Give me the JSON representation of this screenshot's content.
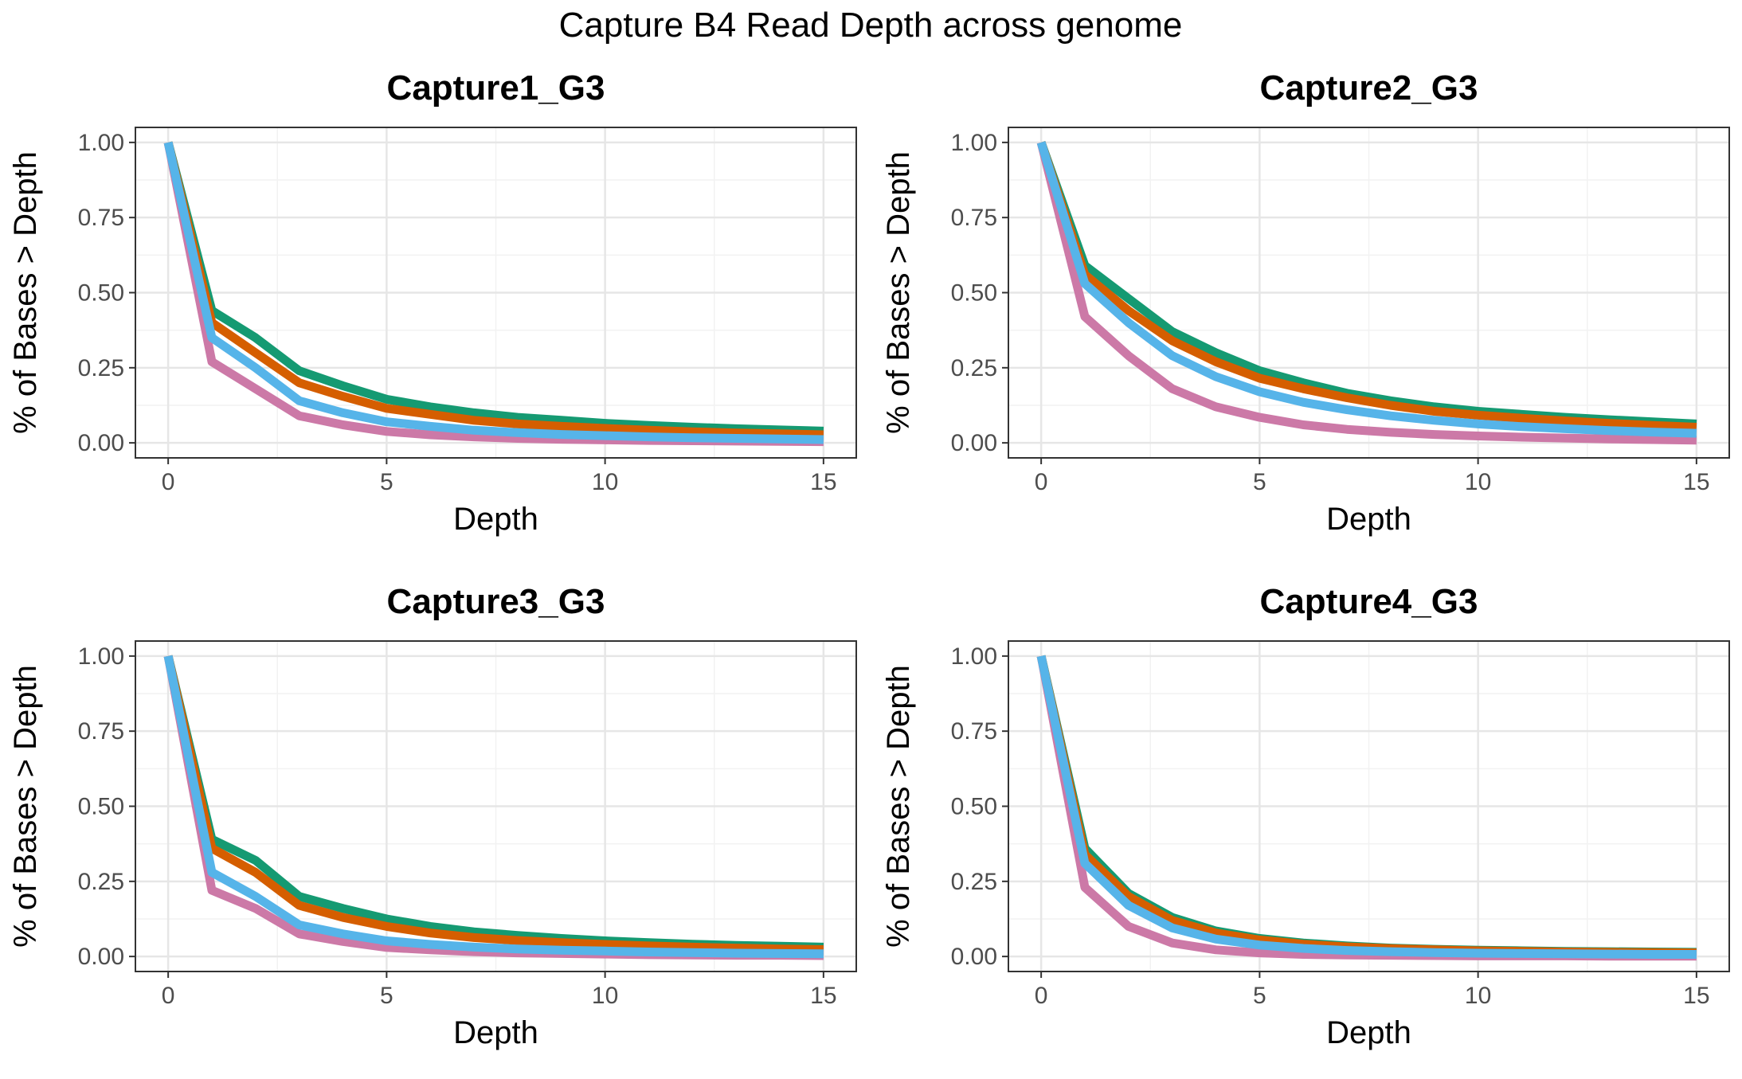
{
  "figure": {
    "title": "Capture B4 Read Depth across genome"
  },
  "chart_data": [
    {
      "type": "line",
      "title": "Capture1_G3",
      "xlabel": "Depth",
      "ylabel": "% of Bases > Depth",
      "xlim": [
        -0.75,
        15.75
      ],
      "ylim": [
        -0.05,
        1.05
      ],
      "xticks": [
        0,
        5,
        10,
        15
      ],
      "yticks": [
        0.0,
        0.25,
        0.5,
        0.75,
        1.0
      ],
      "ytick_labels": [
        "0.00",
        "0.25",
        "0.50",
        "0.75",
        "1.00"
      ],
      "grid": true,
      "x": [
        0,
        1,
        2,
        3,
        4,
        5,
        6,
        7,
        8,
        9,
        10,
        11,
        12,
        13,
        14,
        15
      ],
      "series": [
        {
          "color": "#159a72",
          "values": [
            1.0,
            0.44,
            0.35,
            0.24,
            0.19,
            0.145,
            0.12,
            0.1,
            0.085,
            0.075,
            0.065,
            0.058,
            0.052,
            0.047,
            0.043,
            0.039
          ]
        },
        {
          "color": "#d55e00",
          "values": [
            1.0,
            0.4,
            0.3,
            0.2,
            0.155,
            0.115,
            0.095,
            0.075,
            0.063,
            0.055,
            0.048,
            0.042,
            0.037,
            0.033,
            0.03,
            0.027
          ]
        },
        {
          "color": "#cc79a7",
          "values": [
            1.0,
            0.27,
            0.18,
            0.09,
            0.06,
            0.038,
            0.027,
            0.02,
            0.015,
            0.012,
            0.01,
            0.008,
            0.007,
            0.006,
            0.005,
            0.004
          ]
        },
        {
          "color": "#56b4e9",
          "values": [
            1.0,
            0.35,
            0.25,
            0.14,
            0.1,
            0.07,
            0.055,
            0.042,
            0.034,
            0.028,
            0.024,
            0.02,
            0.017,
            0.015,
            0.013,
            0.011
          ]
        }
      ]
    },
    {
      "type": "line",
      "title": "Capture2_G3",
      "xlabel": "Depth",
      "ylabel": "% of Bases > Depth",
      "xlim": [
        -0.75,
        15.75
      ],
      "ylim": [
        -0.05,
        1.05
      ],
      "xticks": [
        0,
        5,
        10,
        15
      ],
      "yticks": [
        0.0,
        0.25,
        0.5,
        0.75,
        1.0
      ],
      "ytick_labels": [
        "0.00",
        "0.25",
        "0.50",
        "0.75",
        "1.00"
      ],
      "grid": true,
      "x": [
        0,
        1,
        2,
        3,
        4,
        5,
        6,
        7,
        8,
        9,
        10,
        11,
        12,
        13,
        14,
        15
      ],
      "series": [
        {
          "color": "#159a72",
          "values": [
            1.0,
            0.59,
            0.48,
            0.37,
            0.3,
            0.24,
            0.2,
            0.165,
            0.14,
            0.12,
            0.105,
            0.095,
            0.085,
            0.077,
            0.07,
            0.063
          ]
        },
        {
          "color": "#d55e00",
          "values": [
            1.0,
            0.56,
            0.44,
            0.34,
            0.27,
            0.215,
            0.18,
            0.15,
            0.125,
            0.105,
            0.092,
            0.082,
            0.073,
            0.065,
            0.058,
            0.052
          ]
        },
        {
          "color": "#cc79a7",
          "values": [
            1.0,
            0.42,
            0.29,
            0.18,
            0.12,
            0.085,
            0.06,
            0.045,
            0.035,
            0.028,
            0.023,
            0.019,
            0.016,
            0.013,
            0.011,
            0.009
          ]
        },
        {
          "color": "#56b4e9",
          "values": [
            1.0,
            0.53,
            0.4,
            0.29,
            0.22,
            0.17,
            0.135,
            0.11,
            0.09,
            0.075,
            0.063,
            0.054,
            0.047,
            0.041,
            0.036,
            0.032
          ]
        }
      ]
    },
    {
      "type": "line",
      "title": "Capture3_G3",
      "xlabel": "Depth",
      "ylabel": "% of Bases > Depth",
      "xlim": [
        -0.75,
        15.75
      ],
      "ylim": [
        -0.05,
        1.05
      ],
      "xticks": [
        0,
        5,
        10,
        15
      ],
      "yticks": [
        0.0,
        0.25,
        0.5,
        0.75,
        1.0
      ],
      "ytick_labels": [
        "0.00",
        "0.25",
        "0.50",
        "0.75",
        "1.00"
      ],
      "grid": true,
      "x": [
        0,
        1,
        2,
        3,
        4,
        5,
        6,
        7,
        8,
        9,
        10,
        11,
        12,
        13,
        14,
        15
      ],
      "series": [
        {
          "color": "#159a72",
          "values": [
            1.0,
            0.39,
            0.32,
            0.2,
            0.16,
            0.125,
            0.1,
            0.082,
            0.07,
            0.06,
            0.052,
            0.046,
            0.041,
            0.037,
            0.034,
            0.031
          ]
        },
        {
          "color": "#d55e00",
          "values": [
            1.0,
            0.36,
            0.28,
            0.17,
            0.13,
            0.1,
            0.078,
            0.063,
            0.053,
            0.046,
            0.04,
            0.035,
            0.031,
            0.028,
            0.025,
            0.023
          ]
        },
        {
          "color": "#cc79a7",
          "values": [
            1.0,
            0.22,
            0.16,
            0.075,
            0.05,
            0.03,
            0.022,
            0.016,
            0.012,
            0.01,
            0.008,
            0.006,
            0.005,
            0.004,
            0.004,
            0.003
          ]
        },
        {
          "color": "#56b4e9",
          "values": [
            1.0,
            0.28,
            0.2,
            0.105,
            0.075,
            0.052,
            0.04,
            0.031,
            0.025,
            0.021,
            0.018,
            0.015,
            0.013,
            0.011,
            0.01,
            0.009
          ]
        }
      ]
    },
    {
      "type": "line",
      "title": "Capture4_G3",
      "xlabel": "Depth",
      "ylabel": "% of Bases > Depth",
      "xlim": [
        -0.75,
        15.75
      ],
      "ylim": [
        -0.05,
        1.05
      ],
      "xticks": [
        0,
        5,
        10,
        15
      ],
      "yticks": [
        0.0,
        0.25,
        0.5,
        0.75,
        1.0
      ],
      "ytick_labels": [
        "0.00",
        "0.25",
        "0.50",
        "0.75",
        "1.00"
      ],
      "grid": true,
      "x": [
        0,
        1,
        2,
        3,
        4,
        5,
        6,
        7,
        8,
        9,
        10,
        11,
        12,
        13,
        14,
        15
      ],
      "series": [
        {
          "color": "#159a72",
          "values": [
            1.0,
            0.36,
            0.21,
            0.13,
            0.085,
            0.06,
            0.045,
            0.035,
            0.028,
            0.024,
            0.021,
            0.019,
            0.017,
            0.016,
            0.015,
            0.014
          ]
        },
        {
          "color": "#d55e00",
          "values": [
            1.0,
            0.34,
            0.2,
            0.12,
            0.078,
            0.055,
            0.041,
            0.032,
            0.026,
            0.022,
            0.019,
            0.017,
            0.015,
            0.014,
            0.013,
            0.012
          ]
        },
        {
          "color": "#cc79a7",
          "values": [
            1.0,
            0.23,
            0.1,
            0.045,
            0.022,
            0.012,
            0.007,
            0.005,
            0.004,
            0.003,
            0.002,
            0.002,
            0.002,
            0.001,
            0.001,
            0.001
          ]
        },
        {
          "color": "#56b4e9",
          "values": [
            1.0,
            0.31,
            0.17,
            0.095,
            0.058,
            0.038,
            0.027,
            0.02,
            0.016,
            0.013,
            0.011,
            0.01,
            0.009,
            0.008,
            0.007,
            0.007
          ]
        }
      ]
    }
  ]
}
